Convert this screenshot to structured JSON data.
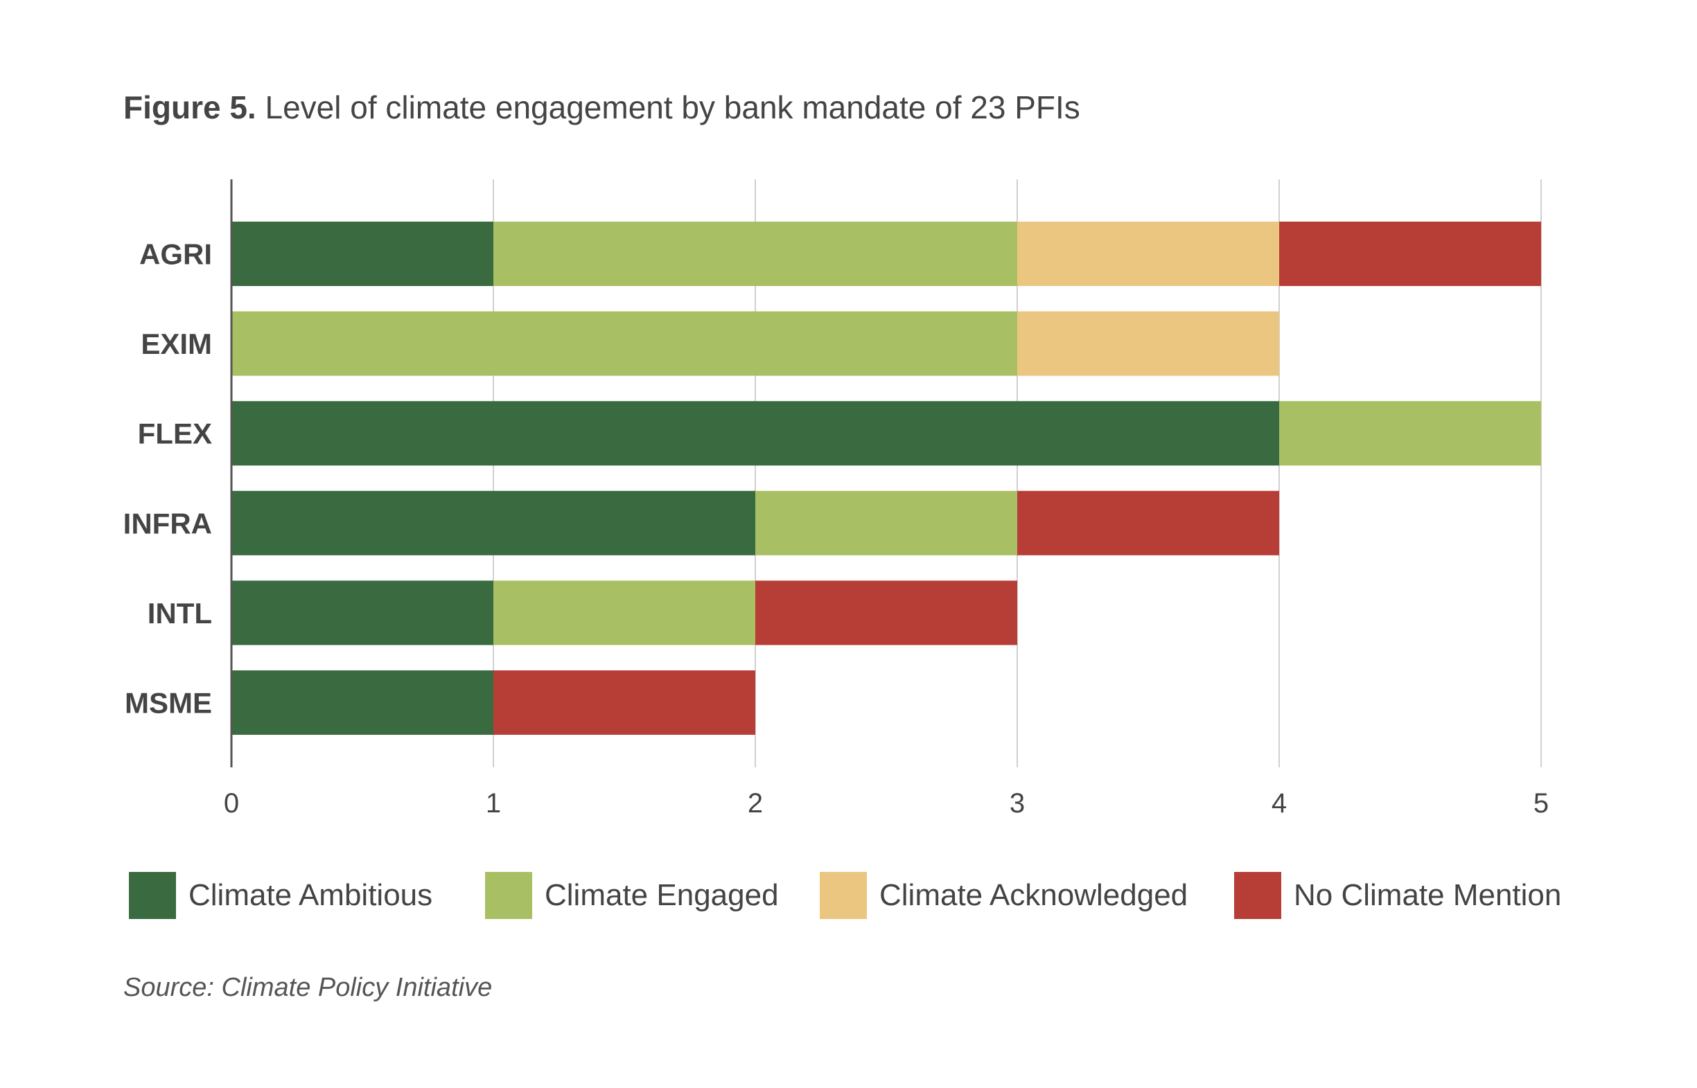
{
  "figure": {
    "label": "Figure 5.",
    "title": "Level of climate engagement by bank mandate of 23 PFIs",
    "source": "Source: Climate Policy Initiative"
  },
  "colors": {
    "climate_ambitious": "#3a6a40",
    "climate_engaged": "#a9bf64",
    "climate_acknowledged": "#ebc680",
    "no_climate_mention": "#b73d37",
    "gridline": "#d0d0d0",
    "axis": "#555555",
    "text": "#444444"
  },
  "chart_data": {
    "type": "bar",
    "orientation": "horizontal",
    "stacked": true,
    "title": "Level of climate engagement by bank mandate of 23 PFIs",
    "xlabel": "",
    "ylabel": "",
    "xlim": [
      0,
      5
    ],
    "xticks": [
      0,
      1,
      2,
      3,
      4,
      5
    ],
    "grid": true,
    "legend_position": "bottom",
    "categories": [
      "AGRI",
      "EXIM",
      "FLEX",
      "INFRA",
      "INTL",
      "MSME"
    ],
    "series": [
      {
        "name": "Climate Ambitious",
        "color": "#3a6a40",
        "values": [
          1,
          0,
          4,
          2,
          1,
          1
        ]
      },
      {
        "name": "Climate Engaged",
        "color": "#a9bf64",
        "values": [
          2,
          3,
          1,
          1,
          1,
          0
        ]
      },
      {
        "name": "Climate Acknowledged",
        "color": "#ebc680",
        "values": [
          1,
          1,
          0,
          0,
          0,
          0
        ]
      },
      {
        "name": "No Climate Mention",
        "color": "#b73d37",
        "values": [
          1,
          0,
          0,
          1,
          1,
          1
        ]
      }
    ]
  }
}
